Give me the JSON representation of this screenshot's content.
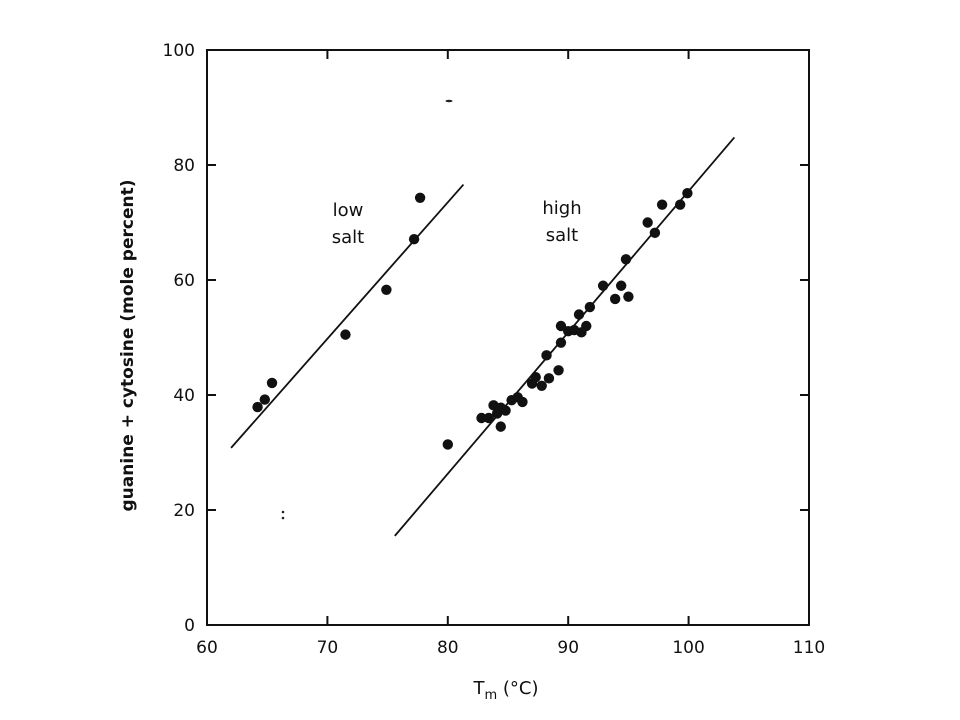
{
  "chart_data": {
    "type": "scatter",
    "title": "",
    "xlabel": {
      "main": "T",
      "sub": "m",
      "tail": " (°C)"
    },
    "ylabel": "guanine + cytosine (mole percent)",
    "xlim": [
      60,
      110
    ],
    "ylim": [
      0,
      100
    ],
    "xticks": [
      60,
      70,
      80,
      90,
      100,
      110
    ],
    "yticks": [
      0,
      20,
      40,
      60,
      80,
      100
    ],
    "grid": false,
    "series": [
      {
        "name": "low salt",
        "label_lines": [
          "low",
          "salt"
        ],
        "points": [
          [
            64.2,
            37.9
          ],
          [
            64.8,
            39.2
          ],
          [
            65.4,
            42.1
          ],
          [
            71.5,
            50.5
          ],
          [
            74.9,
            58.3
          ],
          [
            77.2,
            67.1
          ],
          [
            77.7,
            74.3
          ]
        ],
        "fit": [
          [
            62.0,
            30.8
          ],
          [
            81.3,
            76.6
          ]
        ]
      },
      {
        "name": "high salt",
        "label_lines": [
          "high",
          "salt"
        ],
        "points": [
          [
            80.0,
            31.4
          ],
          [
            82.8,
            36.0
          ],
          [
            83.4,
            36.0
          ],
          [
            83.8,
            38.2
          ],
          [
            84.1,
            36.8
          ],
          [
            84.4,
            37.8
          ],
          [
            84.4,
            34.5
          ],
          [
            84.8,
            37.3
          ],
          [
            85.3,
            39.1
          ],
          [
            85.8,
            39.6
          ],
          [
            86.2,
            38.8
          ],
          [
            87.0,
            42.0
          ],
          [
            87.3,
            43.1
          ],
          [
            87.8,
            41.6
          ],
          [
            88.2,
            46.9
          ],
          [
            88.4,
            42.9
          ],
          [
            89.2,
            44.3
          ],
          [
            89.4,
            49.1
          ],
          [
            89.4,
            52.0
          ],
          [
            90.0,
            51.1
          ],
          [
            90.5,
            51.3
          ],
          [
            90.9,
            54.0
          ],
          [
            91.1,
            50.9
          ],
          [
            91.5,
            52.0
          ],
          [
            91.8,
            55.3
          ],
          [
            92.9,
            59.0
          ],
          [
            93.9,
            56.7
          ],
          [
            94.4,
            59.0
          ],
          [
            94.8,
            63.6
          ],
          [
            95.0,
            57.1
          ],
          [
            96.6,
            70.0
          ],
          [
            97.2,
            68.2
          ],
          [
            97.8,
            73.1
          ],
          [
            99.3,
            73.1
          ],
          [
            99.9,
            75.1
          ]
        ],
        "fit": [
          [
            75.6,
            15.5
          ],
          [
            103.8,
            84.8
          ]
        ]
      }
    ],
    "colors": {
      "marks": "#111111",
      "axis": "#111111"
    }
  }
}
